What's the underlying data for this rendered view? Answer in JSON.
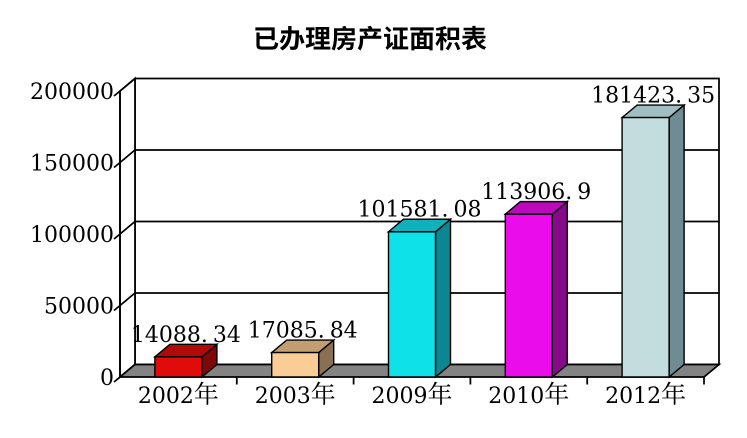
{
  "page": {
    "background": "#FFFFFF"
  },
  "chart_data": {
    "type": "bar",
    "style": "3d-column",
    "title": "已办理房产证面积表",
    "categories": [
      "2002年",
      "2003年",
      "2009年",
      "2010年",
      "2012年"
    ],
    "values": [
      14088.34,
      17085.84,
      101581.08,
      113906.9,
      181423.35
    ],
    "data_labels": [
      "14088.34",
      "17085.84",
      "101581.08",
      "113906.9",
      "181423.35"
    ],
    "xlabel": "",
    "ylabel": "",
    "ylim": [
      0,
      200000
    ],
    "ytick_interval": 50000,
    "ytick_labels": [
      "0",
      "50000",
      "100000",
      "150000",
      "200000"
    ],
    "grid": true,
    "legend": false,
    "bar_colors": [
      {
        "front": "#E00C0C",
        "top": "#B20909",
        "side": "#7E0707"
      },
      {
        "front": "#FACD96",
        "top": "#C49E73",
        "side": "#8A7052"
      },
      {
        "front": "#0FE1E9",
        "top": "#0FB2BC",
        "side": "#0C8690"
      },
      {
        "front": "#EA0CEA",
        "top": "#BC09BE",
        "side": "#850988"
      },
      {
        "front": "#C3DCDE",
        "top": "#9FBDC2",
        "side": "#6F8B93"
      }
    ],
    "floor_color": "#838383",
    "wall_color": "#FFFFFF",
    "line_color": "#000000",
    "text_color": "#000000"
  }
}
